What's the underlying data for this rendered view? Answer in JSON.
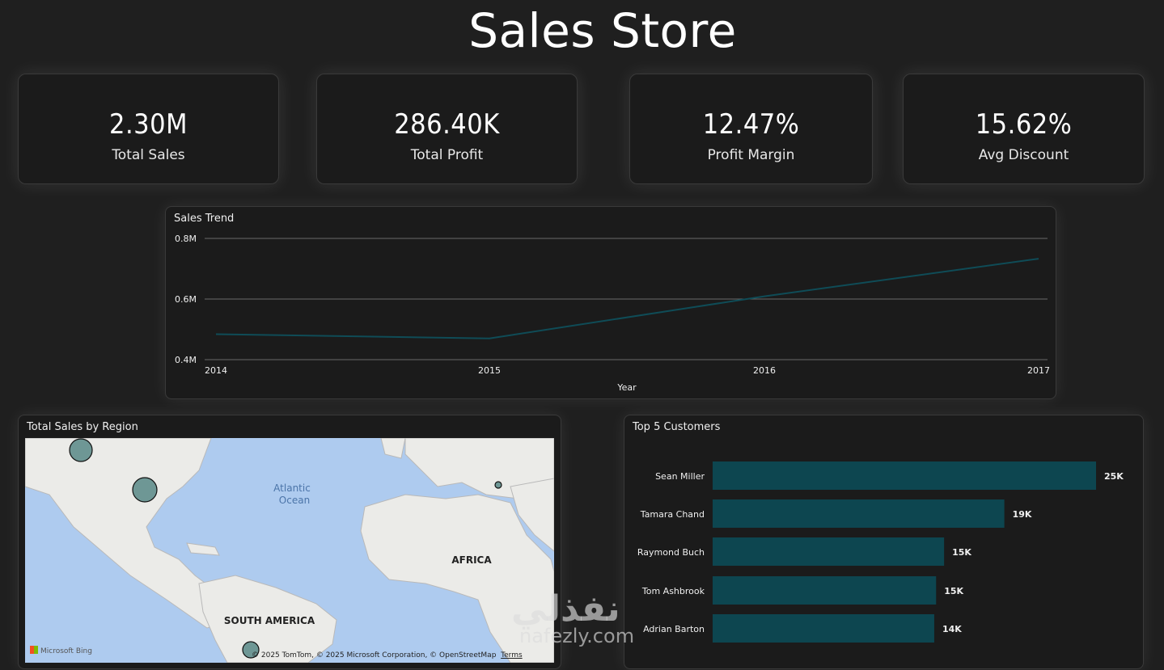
{
  "header": {
    "title": "Sales Store"
  },
  "kpis": [
    {
      "value": "2.30M",
      "label": "Total Sales"
    },
    {
      "value": "286.40K",
      "label": "Total Profit"
    },
    {
      "value": "12.47%",
      "label": "Profit Margin"
    },
    {
      "value": "15.62%",
      "label": "Avg Discount"
    }
  ],
  "trend": {
    "title": "Sales Trend",
    "chart_data": {
      "type": "line",
      "x": [
        "2014",
        "2015",
        "2016",
        "2017"
      ],
      "y": [
        0.484,
        0.47,
        0.609,
        0.733
      ],
      "ylim": [
        0.4,
        0.8
      ],
      "yticks": [
        "0.8M",
        "0.6M",
        "0.4M"
      ],
      "xlabel": "Year",
      "ylabel": "",
      "grid": true,
      "line_color": "#0f4c57"
    }
  },
  "region_map": {
    "title": "Total Sales by Region",
    "labels": {
      "atlantic": "Atlantic",
      "ocean": "Ocean",
      "africa": "AFRICA",
      "south_america": "SOUTH AMERICA"
    },
    "attribution": "© 2025 TomTom, © 2025 Microsoft Corporation, © OpenStreetMap",
    "terms": "Terms",
    "provider": "Microsoft Bing",
    "bubble_color": "#6e9795"
  },
  "top_customers": {
    "title": "Top 5 Customers",
    "chart_data": {
      "type": "bar",
      "orientation": "horizontal",
      "categories": [
        "Sean Miller",
        "Tamara Chand",
        "Raymond Buch",
        "Tom Ashbrook",
        "Adrian Barton"
      ],
      "values": [
        25043,
        19052,
        15117,
        14596,
        14474
      ],
      "data_labels": [
        "25K",
        "19K",
        "15K",
        "15K",
        "14K"
      ],
      "xlim": [
        0,
        25043
      ],
      "bar_color": "#0d4650"
    }
  },
  "watermark": {
    "arabic": "نفذلي",
    "latin": "nafezly.com"
  }
}
